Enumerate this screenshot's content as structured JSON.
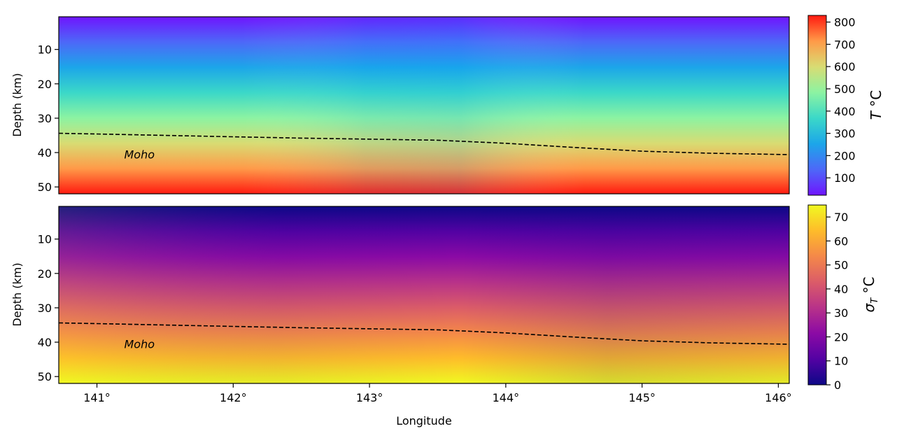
{
  "chart_data": [
    {
      "type": "heatmap",
      "field": "temperature",
      "ylabel": "Depth (km)",
      "xlim": [
        140.72,
        146.08
      ],
      "ylim": [
        52,
        0.5
      ],
      "yticks": [
        10,
        20,
        30,
        40,
        50
      ],
      "y_tick_labels": [
        "10",
        "20",
        "30",
        "40",
        "50"
      ],
      "annotation": "Moho",
      "annotation_pos": [
        141.2,
        40.5
      ],
      "colorbar": {
        "label": "T °C",
        "label_main": "T",
        "label_unit": " °C",
        "range": [
          22,
          830
        ],
        "ticks": [
          100,
          200,
          300,
          400,
          500,
          600,
          700,
          800
        ],
        "tick_labels": [
          "100",
          "200",
          "300",
          "400",
          "500",
          "600",
          "700",
          "800"
        ],
        "colors": [
          "#6f15fe",
          "#4d68f8",
          "#1ca6e9",
          "#3bd8c8",
          "#8cf3a2",
          "#d8dc73",
          "#ff9a48",
          "#ff1a10"
        ]
      }
    },
    {
      "type": "heatmap",
      "field": "temperature_uncertainty",
      "xlabel": "Longitude",
      "ylabel": "Depth (km)",
      "xlim": [
        140.72,
        146.08
      ],
      "ylim": [
        52,
        0.5
      ],
      "xticks": [
        141,
        142,
        143,
        144,
        145,
        146
      ],
      "x_tick_labels": [
        "141°",
        "142°",
        "143°",
        "144°",
        "145°",
        "146°"
      ],
      "yticks": [
        10,
        20,
        30,
        40,
        50
      ],
      "y_tick_labels": [
        "10",
        "20",
        "30",
        "40",
        "50"
      ],
      "annotation": "Moho",
      "annotation_pos": [
        141.2,
        40.5
      ],
      "colorbar": {
        "label": "σT °C",
        "label_main": "σ",
        "label_sub": "T",
        "label_unit": " °C",
        "range": [
          0,
          75
        ],
        "ticks": [
          0,
          10,
          20,
          30,
          40,
          50,
          60,
          70
        ],
        "tick_labels": [
          "0",
          "10",
          "20",
          "30",
          "40",
          "50",
          "60",
          "70"
        ],
        "colors": [
          "#0d0887",
          "#5302a3",
          "#8b0aa5",
          "#b83289",
          "#db5c68",
          "#f48849",
          "#febc2a",
          "#f0f921"
        ]
      }
    }
  ],
  "moho": {
    "line_color": "#000000",
    "x": [
      140.72,
      141.0,
      141.5,
      142.0,
      142.5,
      143.0,
      143.5,
      144.0,
      144.5,
      145.0,
      145.5,
      146.08
    ],
    "depth": [
      34.4,
      34.6,
      35.0,
      35.4,
      35.8,
      36.1,
      36.4,
      37.3,
      38.5,
      39.6,
      40.2,
      40.6
    ]
  }
}
